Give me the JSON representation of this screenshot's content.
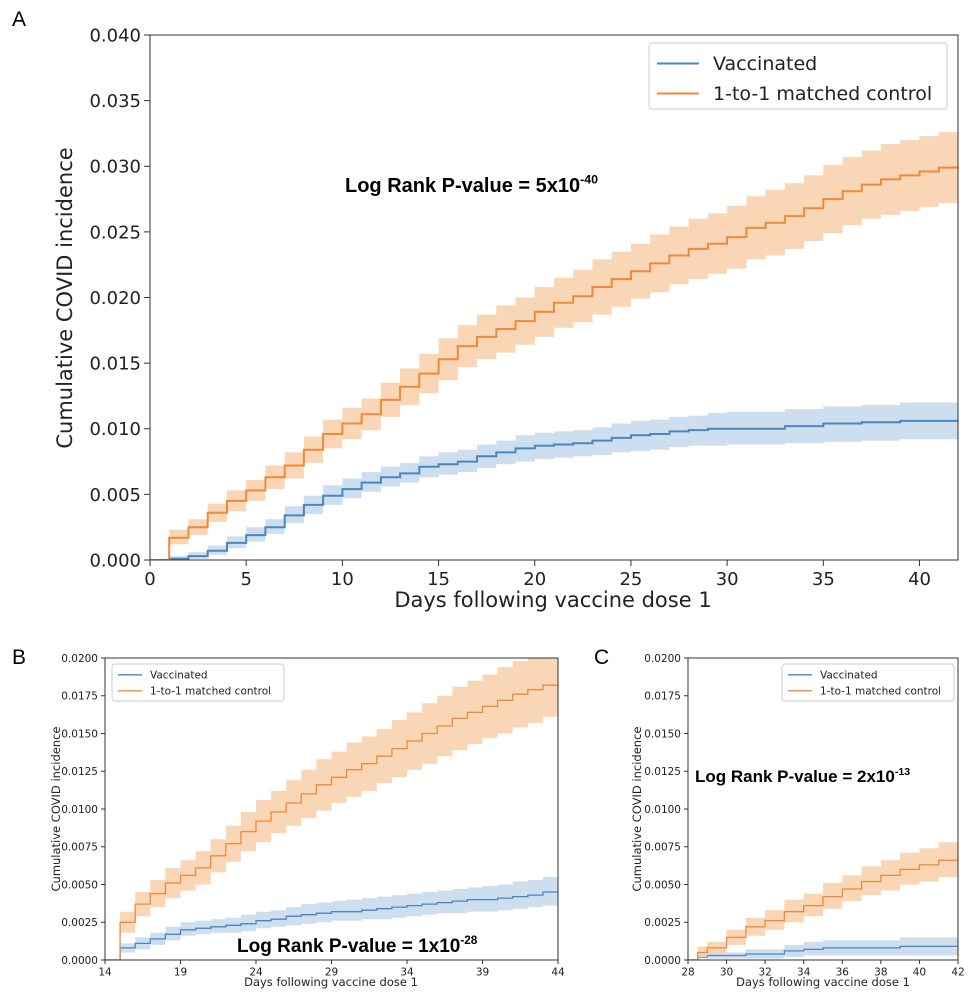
{
  "panel_labels": [
    "A",
    "B",
    "C"
  ],
  "colors": {
    "vaccinated": "#4c86bf",
    "vaccinated_band": "#c4d8ec",
    "control": "#ee8a3a",
    "control_band": "#f8cfa8"
  },
  "chart_data": [
    {
      "panel": "A",
      "type": "line",
      "step": true,
      "xlabel": "Days following vaccine dose 1",
      "ylabel": "Cumulative COVID incidence",
      "xlim": [
        0,
        42
      ],
      "ylim": [
        0,
        0.04
      ],
      "xticks": [
        "0",
        "5",
        "10",
        "15",
        "20",
        "25",
        "30",
        "35",
        "40"
      ],
      "yticks": [
        "0.000",
        "0.005",
        "0.010",
        "0.015",
        "0.020",
        "0.025",
        "0.030",
        "0.035",
        "0.040"
      ],
      "legend": [
        "Vaccinated",
        "1-to-1 matched control"
      ],
      "legend_position": "top-right",
      "annotation": {
        "prefix": "Log Rank P-value = 5x10",
        "exponent": "-40"
      },
      "series": [
        {
          "name": "Vaccinated",
          "x": [
            1,
            2,
            3,
            4,
            5,
            6,
            7,
            8,
            9,
            10,
            11,
            12,
            13,
            14,
            15,
            16,
            17,
            18,
            19,
            20,
            21,
            22,
            23,
            24,
            25,
            26,
            27,
            28,
            29,
            30,
            31,
            32,
            33,
            34,
            35,
            36,
            37,
            38,
            39,
            40,
            41,
            42
          ],
          "y": [
            0.0001,
            0.0003,
            0.0007,
            0.0013,
            0.0019,
            0.0025,
            0.0034,
            0.0042,
            0.0049,
            0.0054,
            0.0059,
            0.0063,
            0.0066,
            0.0071,
            0.0073,
            0.0075,
            0.0079,
            0.0082,
            0.0085,
            0.0087,
            0.0088,
            0.0089,
            0.0091,
            0.0093,
            0.0095,
            0.0096,
            0.0098,
            0.0099,
            0.01,
            0.01,
            0.01,
            0.01,
            0.0102,
            0.0102,
            0.0104,
            0.0104,
            0.0105,
            0.0105,
            0.0106,
            0.0106,
            0.0106,
            0.0106
          ],
          "lower": [
            0,
            0.0001,
            0.0004,
            0.0009,
            0.0014,
            0.002,
            0.0028,
            0.0035,
            0.0042,
            0.0047,
            0.0052,
            0.0056,
            0.0059,
            0.0063,
            0.0065,
            0.0067,
            0.007,
            0.0073,
            0.0075,
            0.0077,
            0.0078,
            0.0079,
            0.008,
            0.0082,
            0.0083,
            0.0084,
            0.0086,
            0.0087,
            0.0087,
            0.0088,
            0.0088,
            0.0088,
            0.0089,
            0.0089,
            0.009,
            0.009,
            0.0091,
            0.0091,
            0.0092,
            0.0092,
            0.0092,
            0.0092
          ],
          "upper": [
            0.0003,
            0.0006,
            0.0011,
            0.0018,
            0.0025,
            0.0031,
            0.0041,
            0.0049,
            0.0057,
            0.0062,
            0.0067,
            0.0071,
            0.0074,
            0.0079,
            0.0082,
            0.0084,
            0.0088,
            0.0091,
            0.0095,
            0.0097,
            0.0098,
            0.0099,
            0.0101,
            0.0104,
            0.0106,
            0.0107,
            0.0109,
            0.011,
            0.0112,
            0.0113,
            0.0113,
            0.0113,
            0.0115,
            0.0115,
            0.0117,
            0.0117,
            0.0118,
            0.0118,
            0.012,
            0.012,
            0.012,
            0.012
          ]
        },
        {
          "name": "1-to-1 matched control",
          "x": [
            1,
            2,
            3,
            4,
            5,
            6,
            7,
            8,
            9,
            10,
            11,
            12,
            13,
            14,
            15,
            16,
            17,
            18,
            19,
            20,
            21,
            22,
            23,
            24,
            25,
            26,
            27,
            28,
            29,
            30,
            31,
            32,
            33,
            34,
            35,
            36,
            37,
            38,
            39,
            40,
            41,
            42
          ],
          "y": [
            0.0017,
            0.0025,
            0.0036,
            0.0045,
            0.0053,
            0.0063,
            0.0072,
            0.0084,
            0.0096,
            0.0104,
            0.0111,
            0.0122,
            0.0132,
            0.0142,
            0.0153,
            0.0163,
            0.017,
            0.0176,
            0.0182,
            0.0189,
            0.0196,
            0.0201,
            0.0208,
            0.0214,
            0.022,
            0.0226,
            0.0232,
            0.0237,
            0.0241,
            0.0246,
            0.0253,
            0.0257,
            0.0262,
            0.0268,
            0.0275,
            0.0281,
            0.0286,
            0.029,
            0.0293,
            0.0296,
            0.0299,
            0.03
          ],
          "lower": [
            0.0012,
            0.0019,
            0.0029,
            0.0037,
            0.0045,
            0.0054,
            0.0062,
            0.0074,
            0.0085,
            0.0092,
            0.0099,
            0.0109,
            0.0118,
            0.0127,
            0.0137,
            0.0147,
            0.0153,
            0.0158,
            0.0164,
            0.017,
            0.0177,
            0.0181,
            0.0187,
            0.0193,
            0.0199,
            0.0204,
            0.021,
            0.0214,
            0.0218,
            0.0222,
            0.0229,
            0.0232,
            0.0237,
            0.0243,
            0.0249,
            0.0255,
            0.026,
            0.0263,
            0.0266,
            0.0269,
            0.0272,
            0.0273
          ],
          "upper": [
            0.0023,
            0.0031,
            0.0043,
            0.0053,
            0.0061,
            0.0072,
            0.0082,
            0.0094,
            0.0107,
            0.0116,
            0.0123,
            0.0135,
            0.0146,
            0.0157,
            0.0169,
            0.0179,
            0.0187,
            0.0194,
            0.02,
            0.0208,
            0.0215,
            0.0221,
            0.0229,
            0.0235,
            0.0241,
            0.0248,
            0.0254,
            0.026,
            0.0264,
            0.027,
            0.0277,
            0.0282,
            0.0287,
            0.0293,
            0.0301,
            0.0307,
            0.0312,
            0.0317,
            0.032,
            0.0323,
            0.0326,
            0.0327
          ]
        }
      ]
    },
    {
      "panel": "B",
      "type": "line",
      "step": true,
      "xlabel": "Days following vaccine dose 1",
      "ylabel": "Cumulative COVID incidence",
      "xlim": [
        14,
        44
      ],
      "ylim": [
        0,
        0.02
      ],
      "xticks": [
        "14",
        "19",
        "24",
        "29",
        "34",
        "39",
        "44"
      ],
      "yticks": [
        "0.0000",
        "0.0025",
        "0.0050",
        "0.0075",
        "0.0100",
        "0.0125",
        "0.0150",
        "0.0175",
        "0.0200"
      ],
      "legend": [
        "Vaccinated",
        "1-to-1 matched control"
      ],
      "legend_position": "top-left",
      "annotation": {
        "prefix": "Log Rank P-value = 1x10",
        "exponent": "-28"
      },
      "series": [
        {
          "name": "Vaccinated",
          "x": [
            15,
            16,
            17,
            18,
            19,
            20,
            21,
            22,
            23,
            24,
            25,
            26,
            27,
            28,
            29,
            30,
            31,
            32,
            33,
            34,
            35,
            36,
            37,
            38,
            39,
            40,
            41,
            42,
            43,
            44
          ],
          "y": [
            0.0008,
            0.0011,
            0.0014,
            0.0017,
            0.002,
            0.0021,
            0.0022,
            0.0023,
            0.0024,
            0.0026,
            0.0027,
            0.0029,
            0.003,
            0.0031,
            0.0032,
            0.0032,
            0.0033,
            0.0034,
            0.0035,
            0.0036,
            0.0037,
            0.0038,
            0.0039,
            0.004,
            0.004,
            0.0041,
            0.0042,
            0.0043,
            0.0045,
            0.0045
          ],
          "lower": [
            0.0005,
            0.0007,
            0.001,
            0.0013,
            0.0016,
            0.0017,
            0.0018,
            0.0018,
            0.0019,
            0.0021,
            0.0022,
            0.0023,
            0.0024,
            0.0025,
            0.0026,
            0.0026,
            0.0027,
            0.0027,
            0.0028,
            0.0029,
            0.003,
            0.0031,
            0.0031,
            0.0032,
            0.0032,
            0.0033,
            0.0034,
            0.0035,
            0.0036,
            0.0036
          ],
          "upper": [
            0.0011,
            0.0015,
            0.0018,
            0.0022,
            0.0025,
            0.0026,
            0.0027,
            0.0028,
            0.003,
            0.0032,
            0.0033,
            0.0035,
            0.0037,
            0.0038,
            0.0039,
            0.004,
            0.0041,
            0.0042,
            0.0043,
            0.0044,
            0.0045,
            0.0046,
            0.0047,
            0.0048,
            0.0049,
            0.005,
            0.0052,
            0.0053,
            0.0055,
            0.0056
          ]
        },
        {
          "name": "1-to-1 matched control",
          "x": [
            15,
            16,
            17,
            18,
            19,
            20,
            21,
            22,
            23,
            24,
            25,
            26,
            27,
            28,
            29,
            30,
            31,
            32,
            33,
            34,
            35,
            36,
            37,
            38,
            39,
            40,
            41,
            42,
            43,
            44
          ],
          "y": [
            0.0025,
            0.0037,
            0.0044,
            0.0051,
            0.0056,
            0.0061,
            0.0069,
            0.0077,
            0.0085,
            0.0092,
            0.0098,
            0.0104,
            0.011,
            0.0116,
            0.0121,
            0.0126,
            0.013,
            0.0135,
            0.014,
            0.0145,
            0.015,
            0.0155,
            0.016,
            0.0164,
            0.0168,
            0.0172,
            0.0176,
            0.0179,
            0.0182,
            0.0182
          ],
          "lower": [
            0.0018,
            0.0029,
            0.0035,
            0.0041,
            0.0046,
            0.005,
            0.0058,
            0.0065,
            0.0072,
            0.0078,
            0.0084,
            0.0089,
            0.0094,
            0.0099,
            0.0104,
            0.0108,
            0.0112,
            0.0117,
            0.0121,
            0.0126,
            0.013,
            0.0135,
            0.0139,
            0.0143,
            0.0147,
            0.015,
            0.0154,
            0.0157,
            0.0161,
            0.0161
          ],
          "upper": [
            0.0032,
            0.0045,
            0.0053,
            0.0061,
            0.0066,
            0.0072,
            0.008,
            0.0089,
            0.0098,
            0.0106,
            0.0112,
            0.0119,
            0.0126,
            0.0133,
            0.0138,
            0.0144,
            0.0148,
            0.0153,
            0.0159,
            0.0164,
            0.017,
            0.0175,
            0.0181,
            0.0185,
            0.0189,
            0.0194,
            0.0198,
            0.0201,
            0.0204,
            0.0204
          ]
        }
      ]
    },
    {
      "panel": "C",
      "type": "line",
      "step": true,
      "xlabel": "Days following vaccine dose 1",
      "ylabel": "Cumulative COVID incidence",
      "xlim": [
        28,
        42
      ],
      "ylim": [
        0,
        0.02
      ],
      "xticks": [
        "28",
        "30",
        "32",
        "34",
        "36",
        "38",
        "40",
        "42"
      ],
      "yticks": [
        "0.0000",
        "0.0025",
        "0.0050",
        "0.0075",
        "0.0100",
        "0.0125",
        "0.0150",
        "0.0175",
        "0.0200"
      ],
      "legend": [
        "Vaccinated",
        "1-to-1 matched control"
      ],
      "legend_position": "top-right",
      "annotation": {
        "prefix": "Log Rank P-value = 2x10",
        "exponent": "-13"
      },
      "series": [
        {
          "name": "Vaccinated",
          "x": [
            28.5,
            29,
            30,
            31,
            32,
            33,
            34,
            35,
            36,
            37,
            38,
            39,
            40,
            41,
            42
          ],
          "y": [
            0.0002,
            0.0003,
            0.0003,
            0.0004,
            0.0004,
            0.0006,
            0.0007,
            0.0008,
            0.0008,
            0.0008,
            0.0008,
            0.0009,
            0.0009,
            0.0009,
            0.0009
          ],
          "lower": [
            0.0001,
            0.0001,
            0.0001,
            0.0001,
            0.0001,
            0.0002,
            0.0003,
            0.0003,
            0.0003,
            0.0003,
            0.0003,
            0.0003,
            0.0003,
            0.0003,
            0.0003
          ],
          "upper": [
            0.0004,
            0.0005,
            0.0005,
            0.0007,
            0.0007,
            0.001,
            0.0012,
            0.0013,
            0.0013,
            0.0013,
            0.0013,
            0.0015,
            0.0015,
            0.0015,
            0.0015
          ]
        },
        {
          "name": "1-to-1 matched control",
          "x": [
            28.5,
            29,
            30,
            31,
            32,
            33,
            34,
            35,
            36,
            37,
            38,
            39,
            40,
            41,
            42
          ],
          "y": [
            0.0005,
            0.0008,
            0.0015,
            0.0022,
            0.0026,
            0.0032,
            0.0036,
            0.0042,
            0.0047,
            0.0052,
            0.0056,
            0.006,
            0.0063,
            0.0066,
            0.007
          ],
          "lower": [
            0.0002,
            0.0004,
            0.001,
            0.0016,
            0.002,
            0.0025,
            0.0029,
            0.0034,
            0.0039,
            0.0043,
            0.0046,
            0.005,
            0.0052,
            0.0055,
            0.0058
          ],
          "upper": [
            0.0009,
            0.0012,
            0.002,
            0.0028,
            0.0033,
            0.004,
            0.0044,
            0.0051,
            0.0056,
            0.0062,
            0.0066,
            0.0071,
            0.0074,
            0.0078,
            0.0084
          ]
        }
      ]
    }
  ]
}
